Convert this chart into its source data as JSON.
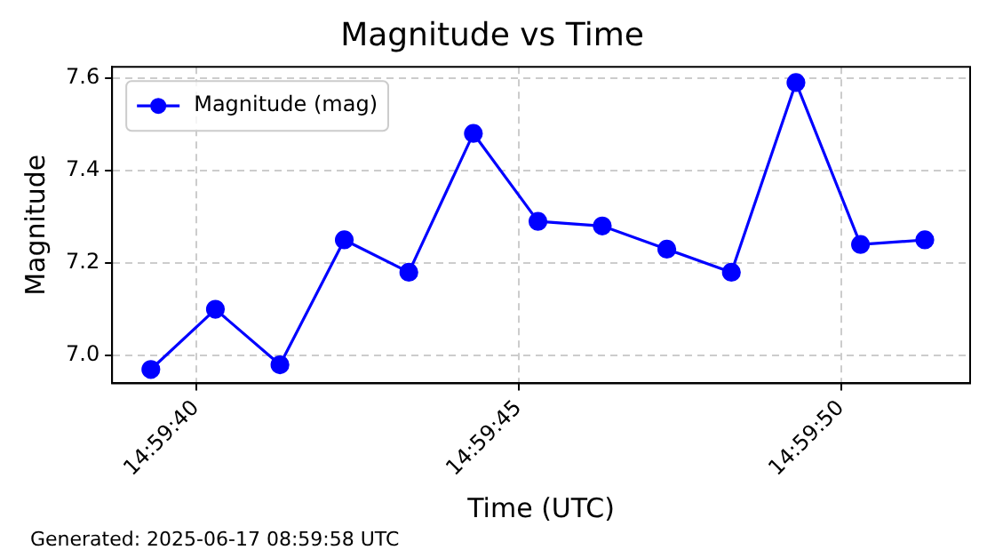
{
  "chart_data": {
    "type": "line",
    "title": "Magnitude vs Time",
    "xlabel": "Time (UTC)",
    "ylabel": "Magnitude",
    "x": [
      14.99425,
      14.994528,
      14.994806,
      14.995083,
      14.995361,
      14.995639,
      14.995917,
      14.996194,
      14.996472,
      14.99675,
      14.997028,
      14.997306,
      14.997583
    ],
    "series": [
      {
        "name": "Magnitude (mag)",
        "color": "#0000ff",
        "values": [
          6.97,
          7.1,
          6.98,
          7.25,
          7.18,
          7.48,
          7.29,
          7.28,
          7.23,
          7.18,
          7.59,
          7.24,
          7.25
        ]
      }
    ],
    "xlim": [
      14.994083,
      14.997778
    ],
    "xticks": [
      {
        "value": 14.994444,
        "label": "14:59:40"
      },
      {
        "value": 14.995833,
        "label": "14:59:45"
      },
      {
        "value": 14.997222,
        "label": "14:59:50"
      }
    ],
    "ylim": [
      6.94,
      7.624
    ],
    "yticks": [
      {
        "value": 7.0,
        "label": "7.0"
      },
      {
        "value": 7.2,
        "label": "7.2"
      },
      {
        "value": 7.4,
        "label": "7.4"
      },
      {
        "value": 7.6,
        "label": "7.6"
      }
    ],
    "grid": true,
    "legend": "top left",
    "marker": "circle",
    "line_style": "solid",
    "annotations": [
      "Generated: 2025-06-17 08:59:58 UTC"
    ]
  }
}
